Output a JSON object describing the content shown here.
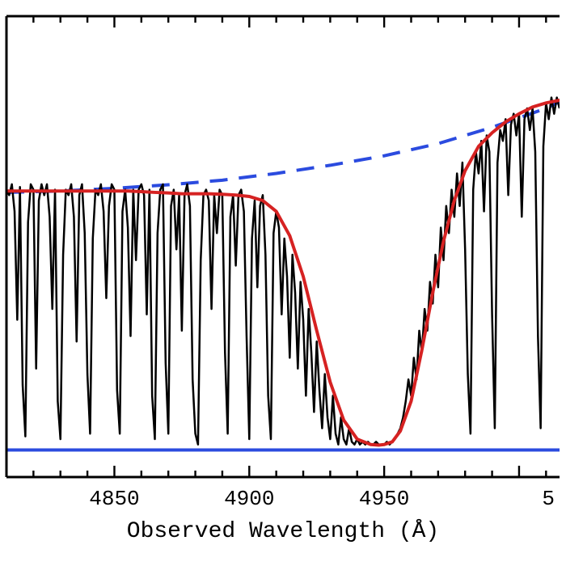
{
  "spectrum_chart": {
    "type": "line",
    "xlabel": "Observed Wavelength (Å)",
    "label_fontsize": 28,
    "tick_fontsize": 26,
    "xlim": [
      4810,
      5015
    ],
    "ylim": [
      -0.1,
      1.6
    ],
    "xtick_positions": [
      4850,
      4900,
      4950
    ],
    "xtick_labels": [
      "4850",
      "4900",
      "4950"
    ],
    "right_partial_label": "5",
    "background_color": "#ffffff",
    "axis_color": "#000000",
    "axis_width": 3,
    "minor_tick_interval": 10,
    "major_tick_len": 14,
    "minor_tick_len": 8,
    "series": {
      "continuum": {
        "color": "#2b4bdf",
        "width": 4,
        "dash": "22 14",
        "points": [
          [
            4810,
            0.95
          ],
          [
            4830,
            0.955
          ],
          [
            4850,
            0.965
          ],
          [
            4870,
            0.978
          ],
          [
            4890,
            0.995
          ],
          [
            4910,
            1.02
          ],
          [
            4930,
            1.05
          ],
          [
            4950,
            1.085
          ],
          [
            4970,
            1.13
          ],
          [
            4990,
            1.19
          ],
          [
            5010,
            1.26
          ],
          [
            5015,
            1.285
          ]
        ]
      },
      "fit": {
        "color": "#d62222",
        "width": 4,
        "points": [
          [
            4810,
            0.955
          ],
          [
            4820,
            0.955
          ],
          [
            4830,
            0.955
          ],
          [
            4840,
            0.955
          ],
          [
            4850,
            0.955
          ],
          [
            4855,
            0.955
          ],
          [
            4860,
            0.953
          ],
          [
            4865,
            0.95
          ],
          [
            4870,
            0.948
          ],
          [
            4875,
            0.945
          ],
          [
            4880,
            0.945
          ],
          [
            4885,
            0.945
          ],
          [
            4890,
            0.943
          ],
          [
            4895,
            0.94
          ],
          [
            4900,
            0.935
          ],
          [
            4905,
            0.92
          ],
          [
            4910,
            0.88
          ],
          [
            4915,
            0.79
          ],
          [
            4920,
            0.64
          ],
          [
            4925,
            0.44
          ],
          [
            4930,
            0.25
          ],
          [
            4935,
            0.11
          ],
          [
            4940,
            0.04
          ],
          [
            4945,
            0.02
          ],
          [
            4948,
            0.018
          ],
          [
            4950,
            0.02
          ],
          [
            4953,
            0.03
          ],
          [
            4956,
            0.07
          ],
          [
            4960,
            0.18
          ],
          [
            4964,
            0.37
          ],
          [
            4968,
            0.58
          ],
          [
            4972,
            0.77
          ],
          [
            4976,
            0.92
          ],
          [
            4980,
            1.03
          ],
          [
            4985,
            1.12
          ],
          [
            4990,
            1.17
          ],
          [
            4995,
            1.21
          ],
          [
            5000,
            1.24
          ],
          [
            5005,
            1.265
          ],
          [
            5010,
            1.28
          ],
          [
            5015,
            1.29
          ]
        ]
      },
      "zero_line": {
        "color": "#2b4bdf",
        "width": 4,
        "points": [
          [
            4810,
            0.0
          ],
          [
            5015,
            0.0
          ]
        ]
      },
      "zero_dash": {
        "color": "#5fd07a",
        "width": 3,
        "dash": "10 10",
        "points": [
          [
            4810,
            0.0
          ],
          [
            5015,
            0.0
          ]
        ]
      },
      "spectrum": {
        "color": "#000000",
        "width": 2.5,
        "points": [
          [
            4810,
            0.96
          ],
          [
            4811,
            0.94
          ],
          [
            4812,
            0.98
          ],
          [
            4813,
            0.88
          ],
          [
            4814,
            0.48
          ],
          [
            4815,
            0.97
          ],
          [
            4816,
            0.24
          ],
          [
            4817,
            0.05
          ],
          [
            4818,
            0.84
          ],
          [
            4819,
            0.98
          ],
          [
            4820,
            0.96
          ],
          [
            4821,
            0.3
          ],
          [
            4822,
            0.92
          ],
          [
            4823,
            0.98
          ],
          [
            4824,
            0.94
          ],
          [
            4825,
            0.98
          ],
          [
            4826,
            0.86
          ],
          [
            4827,
            0.52
          ],
          [
            4828,
            0.96
          ],
          [
            4829,
            0.18
          ],
          [
            4830,
            0.04
          ],
          [
            4831,
            0.72
          ],
          [
            4832,
            0.96
          ],
          [
            4833,
            0.94
          ],
          [
            4834,
            0.98
          ],
          [
            4835,
            0.86
          ],
          [
            4836,
            0.4
          ],
          [
            4837,
            0.94
          ],
          [
            4838,
            0.98
          ],
          [
            4839,
            0.8
          ],
          [
            4840,
            0.28
          ],
          [
            4841,
            0.06
          ],
          [
            4842,
            0.78
          ],
          [
            4843,
            0.96
          ],
          [
            4844,
            0.94
          ],
          [
            4845,
            0.98
          ],
          [
            4846,
            0.88
          ],
          [
            4847,
            0.56
          ],
          [
            4848,
            0.9
          ],
          [
            4849,
            0.98
          ],
          [
            4850,
            0.96
          ],
          [
            4851,
            0.22
          ],
          [
            4852,
            0.06
          ],
          [
            4853,
            0.88
          ],
          [
            4854,
            0.96
          ],
          [
            4855,
            0.82
          ],
          [
            4856,
            0.42
          ],
          [
            4857,
            0.96
          ],
          [
            4858,
            0.7
          ],
          [
            4859,
            0.96
          ],
          [
            4860,
            0.98
          ],
          [
            4861,
            0.94
          ],
          [
            4862,
            0.5
          ],
          [
            4863,
            0.96
          ],
          [
            4864,
            0.2
          ],
          [
            4865,
            0.04
          ],
          [
            4866,
            0.8
          ],
          [
            4867,
            0.96
          ],
          [
            4868,
            0.98
          ],
          [
            4869,
            0.32
          ],
          [
            4870,
            0.06
          ],
          [
            4871,
            0.9
          ],
          [
            4872,
            0.96
          ],
          [
            4873,
            0.74
          ],
          [
            4874,
            0.94
          ],
          [
            4875,
            0.44
          ],
          [
            4876,
            0.94
          ],
          [
            4877,
            0.98
          ],
          [
            4878,
            0.9
          ],
          [
            4879,
            0.26
          ],
          [
            4880,
            0.06
          ],
          [
            4881,
            0.02
          ],
          [
            4882,
            0.7
          ],
          [
            4883,
            0.94
          ],
          [
            4884,
            0.96
          ],
          [
            4885,
            0.92
          ],
          [
            4886,
            0.52
          ],
          [
            4887,
            0.94
          ],
          [
            4888,
            0.8
          ],
          [
            4889,
            0.96
          ],
          [
            4890,
            0.94
          ],
          [
            4891,
            0.36
          ],
          [
            4892,
            0.06
          ],
          [
            4893,
            0.86
          ],
          [
            4894,
            0.94
          ],
          [
            4895,
            0.68
          ],
          [
            4896,
            0.94
          ],
          [
            4897,
            0.96
          ],
          [
            4898,
            0.88
          ],
          [
            4899,
            0.42
          ],
          [
            4900,
            0.04
          ],
          [
            4901,
            0.78
          ],
          [
            4902,
            0.92
          ],
          [
            4903,
            0.6
          ],
          [
            4904,
            0.9
          ],
          [
            4905,
            0.94
          ],
          [
            4906,
            0.72
          ],
          [
            4907,
            0.2
          ],
          [
            4908,
            0.04
          ],
          [
            4909,
            0.8
          ],
          [
            4910,
            0.88
          ],
          [
            4911,
            0.82
          ],
          [
            4912,
            0.5
          ],
          [
            4913,
            0.78
          ],
          [
            4914,
            0.64
          ],
          [
            4915,
            0.34
          ],
          [
            4916,
            0.72
          ],
          [
            4917,
            0.58
          ],
          [
            4918,
            0.3
          ],
          [
            4919,
            0.62
          ],
          [
            4920,
            0.48
          ],
          [
            4921,
            0.2
          ],
          [
            4922,
            0.52
          ],
          [
            4923,
            0.36
          ],
          [
            4924,
            0.14
          ],
          [
            4925,
            0.4
          ],
          [
            4926,
            0.22
          ],
          [
            4927,
            0.08
          ],
          [
            4928,
            0.28
          ],
          [
            4929,
            0.12
          ],
          [
            4930,
            0.04
          ],
          [
            4931,
            0.2
          ],
          [
            4932,
            0.06
          ],
          [
            4933,
            0.02
          ],
          [
            4934,
            0.12
          ],
          [
            4935,
            0.04
          ],
          [
            4936,
            0.02
          ],
          [
            4937,
            0.08
          ],
          [
            4938,
            0.03
          ],
          [
            4939,
            0.02
          ],
          [
            4940,
            0.04
          ],
          [
            4941,
            0.02
          ],
          [
            4942,
            0.03
          ],
          [
            4943,
            0.02
          ],
          [
            4944,
            0.03
          ],
          [
            4945,
            0.02
          ],
          [
            4946,
            0.02
          ],
          [
            4947,
            0.03
          ],
          [
            4948,
            0.02
          ],
          [
            4949,
            0.02
          ],
          [
            4950,
            0.02
          ],
          [
            4951,
            0.03
          ],
          [
            4952,
            0.02
          ],
          [
            4953,
            0.03
          ],
          [
            4954,
            0.04
          ],
          [
            4955,
            0.06
          ],
          [
            4956,
            0.08
          ],
          [
            4957,
            0.12
          ],
          [
            4958,
            0.18
          ],
          [
            4959,
            0.26
          ],
          [
            4960,
            0.2
          ],
          [
            4961,
            0.34
          ],
          [
            4962,
            0.26
          ],
          [
            4963,
            0.44
          ],
          [
            4964,
            0.36
          ],
          [
            4965,
            0.52
          ],
          [
            4966,
            0.44
          ],
          [
            4967,
            0.62
          ],
          [
            4968,
            0.54
          ],
          [
            4969,
            0.72
          ],
          [
            4970,
            0.6
          ],
          [
            4971,
            0.82
          ],
          [
            4972,
            0.7
          ],
          [
            4973,
            0.9
          ],
          [
            4974,
            0.8
          ],
          [
            4975,
            0.96
          ],
          [
            4976,
            0.86
          ],
          [
            4977,
            1.02
          ],
          [
            4978,
            0.9
          ],
          [
            4979,
            1.06
          ],
          [
            4980,
            0.74
          ],
          [
            4981,
            0.28
          ],
          [
            4982,
            0.06
          ],
          [
            4983,
            0.96
          ],
          [
            4984,
            1.1
          ],
          [
            4985,
            1.02
          ],
          [
            4986,
            1.14
          ],
          [
            4987,
            0.88
          ],
          [
            4988,
            1.16
          ],
          [
            4989,
            1.1
          ],
          [
            4990,
            0.5
          ],
          [
            4991,
            0.08
          ],
          [
            4992,
            1.06
          ],
          [
            4993,
            1.18
          ],
          [
            4994,
            1.14
          ],
          [
            4995,
            1.22
          ],
          [
            4996,
            0.94
          ],
          [
            4997,
            1.2
          ],
          [
            4998,
            1.24
          ],
          [
            4999,
            1.16
          ],
          [
            5000,
            1.24
          ],
          [
            5001,
            0.86
          ],
          [
            5002,
            1.22
          ],
          [
            5003,
            1.26
          ],
          [
            5004,
            1.18
          ],
          [
            5005,
            1.26
          ],
          [
            5006,
            1.1
          ],
          [
            5007,
            0.42
          ],
          [
            5008,
            0.08
          ],
          [
            5009,
            1.12
          ],
          [
            5010,
            1.28
          ],
          [
            5011,
            1.22
          ],
          [
            5012,
            1.3
          ],
          [
            5013,
            1.24
          ],
          [
            5014,
            1.3
          ],
          [
            5015,
            1.26
          ]
        ]
      }
    }
  }
}
